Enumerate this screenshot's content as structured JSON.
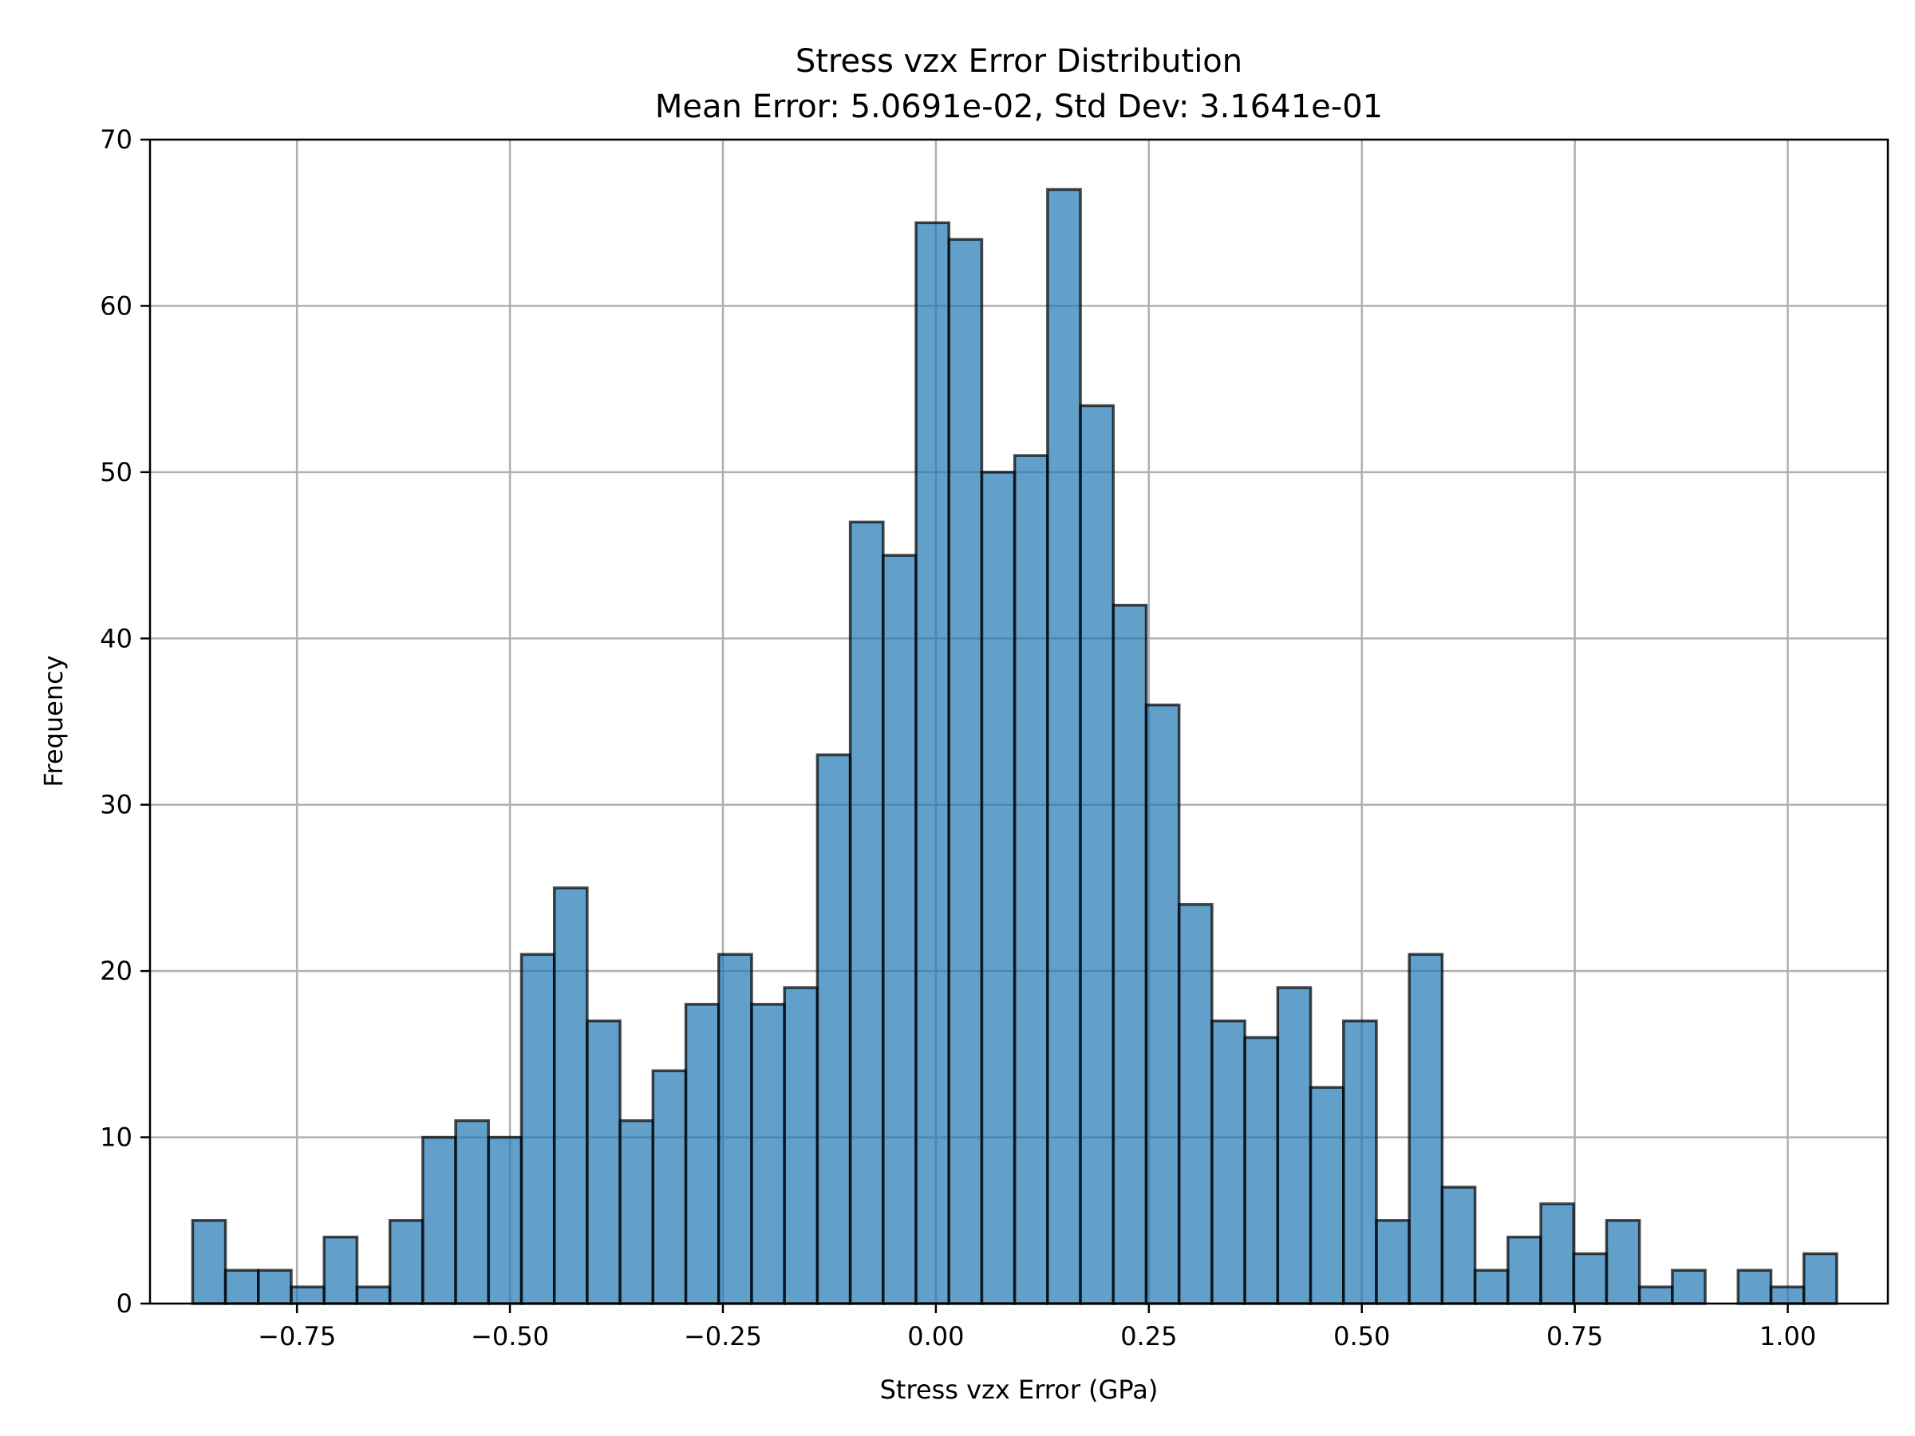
{
  "chart_data": {
    "type": "bar",
    "title": "Stress vzx Error Distribution",
    "subtitle": "Mean Error: 5.0691e-02, Std Dev: 3.1641e-01",
    "xlabel": "Stress vzx Error (GPa)",
    "ylabel": "Frequency",
    "xlim": [
      -0.9225,
      1.1175
    ],
    "ylim": [
      0,
      70
    ],
    "grid": true,
    "bar_color": "#1f77b4",
    "edge_color": "#000000",
    "x_ticks": [
      {
        "value": -0.75,
        "label": "−0.75"
      },
      {
        "value": -0.5,
        "label": "−0.50"
      },
      {
        "value": -0.25,
        "label": "−0.25"
      },
      {
        "value": 0.0,
        "label": "0.00"
      },
      {
        "value": 0.25,
        "label": "0.25"
      },
      {
        "value": 0.5,
        "label": "0.50"
      },
      {
        "value": 0.75,
        "label": "0.75"
      },
      {
        "value": 1.0,
        "label": "1.00"
      }
    ],
    "y_ticks": [
      {
        "value": 0,
        "label": "0"
      },
      {
        "value": 10,
        "label": "10"
      },
      {
        "value": 20,
        "label": "20"
      },
      {
        "value": 30,
        "label": "30"
      },
      {
        "value": 40,
        "label": "40"
      },
      {
        "value": 50,
        "label": "50"
      },
      {
        "value": 60,
        "label": "60"
      },
      {
        "value": 70,
        "label": "70"
      }
    ],
    "bin_start": -0.8725,
    "bin_width": 0.0386,
    "values": [
      5,
      2,
      2,
      1,
      4,
      1,
      5,
      10,
      11,
      10,
      21,
      25,
      17,
      11,
      14,
      18,
      21,
      18,
      19,
      33,
      47,
      45,
      65,
      64,
      50,
      51,
      67,
      54,
      42,
      36,
      24,
      17,
      16,
      19,
      13,
      17,
      5,
      21,
      7,
      2,
      4,
      6,
      3,
      5,
      1,
      2,
      0,
      2,
      1,
      3
    ]
  }
}
